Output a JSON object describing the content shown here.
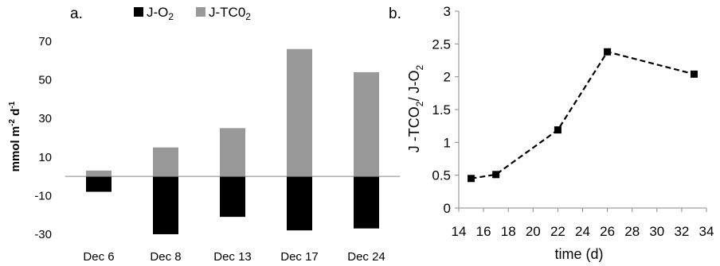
{
  "chart_data": [
    {
      "type": "bar",
      "panel_label": "a.",
      "categories": [
        "Dec 6",
        "Dec 8",
        "Dec 13",
        "Dec 17",
        "Dec 24"
      ],
      "series": [
        {
          "name": "J-O2",
          "name_main": "J-O",
          "name_sub": "2",
          "color": "#000000",
          "values": [
            -8,
            -30,
            -21,
            -28,
            -27
          ]
        },
        {
          "name": "J-TC02",
          "name_main": "J-TC0",
          "name_sub": "2",
          "color": "#999999",
          "values": [
            3,
            15,
            25,
            66,
            54
          ]
        }
      ],
      "ylabel": "mmol m⁻² d⁻¹",
      "ylabel_main": "mmol m",
      "ylabel_sup1": "-2",
      "ylabel_mid": " d",
      "ylabel_sup2": "-1",
      "ylim": [
        -30,
        70
      ],
      "yticks": [
        -30,
        -10,
        10,
        30,
        50,
        70
      ],
      "legend": "top",
      "grid": false
    },
    {
      "type": "line",
      "panel_label": "b.",
      "x": [
        15,
        17,
        22,
        26,
        33
      ],
      "y": [
        0.45,
        0.51,
        1.19,
        2.38,
        2.04
      ],
      "xlabel": "time (d)",
      "ylabel": "J-TCO2/ J-O2",
      "ylabel_parts": [
        "J -TCO",
        "2",
        "/ J-O",
        "2"
      ],
      "xlim": [
        14,
        34
      ],
      "ylim": [
        0,
        3
      ],
      "xticks": [
        14,
        16,
        18,
        20,
        22,
        24,
        26,
        28,
        30,
        32,
        34
      ],
      "yticks": [
        "0",
        "0.5",
        "1",
        "1.5",
        "2",
        "2.5",
        "3"
      ],
      "line_style": "dashed",
      "marker": "square",
      "color": "#000000",
      "grid": false
    }
  ]
}
